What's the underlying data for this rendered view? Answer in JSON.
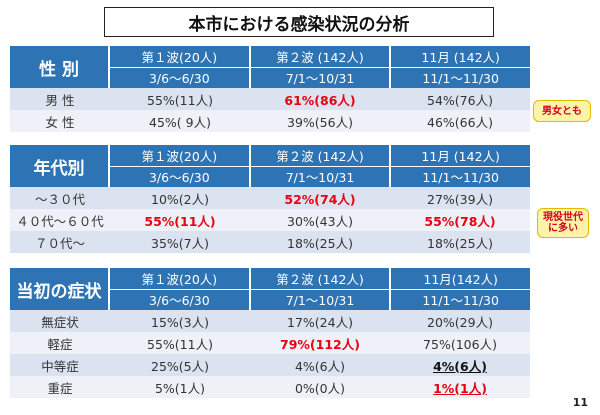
{
  "title": "本市における感染状況の分析",
  "page_number": "11",
  "column_headers": [
    {
      "wave": "第１波(20人)",
      "period": "3/6～6/30"
    },
    {
      "wave": "第２波 (142人)",
      "period": "7/1～10/31"
    },
    {
      "wave": "11月 (142人)",
      "period": "11/1～11/30"
    }
  ],
  "sections": [
    {
      "label": "性 別",
      "rows": [
        {
          "label": "男 性",
          "values": [
            "55%(11人)",
            "61%(86人)",
            "54%(76人)"
          ]
        },
        {
          "label": "女 性",
          "values": [
            "45%( 9人)",
            "39%(56人)",
            "46%(66人)"
          ]
        }
      ]
    },
    {
      "label": "年代別",
      "rows": [
        {
          "label": "～３０代",
          "values": [
            "10%(2人)",
            "52%(74人)",
            "27%(39人)"
          ]
        },
        {
          "label": "４０代～６０代",
          "values": [
            "55%(11人)",
            "30%(43人)",
            "55%(78人)"
          ]
        },
        {
          "label": "７０代～",
          "values": [
            "35%(7人)",
            "18%(25人)",
            "18%(25人)"
          ]
        }
      ]
    },
    {
      "label": "当初の症状",
      "column_headers_override": [
        {
          "wave": "第１波(20人)",
          "period": "3/6～6/30"
        },
        {
          "wave": "第２波 (142人)",
          "period": "7/1～10/31"
        },
        {
          "wave": "11月(142人)",
          "period": "11/1～11/30"
        }
      ],
      "rows": [
        {
          "label": "無症状",
          "values": [
            "15%(3人)",
            "17%(24人)",
            "20%(29人)"
          ]
        },
        {
          "label": "軽症",
          "values": [
            "55%(11人)",
            "79%(112人)",
            "75%(106人)"
          ]
        },
        {
          "label": "中等症",
          "values": [
            "25%(5人)",
            "4%(6人)",
            "4%(6人)"
          ]
        },
        {
          "label": "重症",
          "values": [
            "5%(1人)",
            "0%(0人)",
            "1%(1人)"
          ]
        }
      ]
    }
  ],
  "badges": {
    "gender": "男女とも",
    "age_line1": "現役世代",
    "age_line2": "に多い"
  },
  "colors": {
    "header_blue": "#2e74b5",
    "highlight_red": "#e60012",
    "badge_bg": "#fff3a8"
  }
}
